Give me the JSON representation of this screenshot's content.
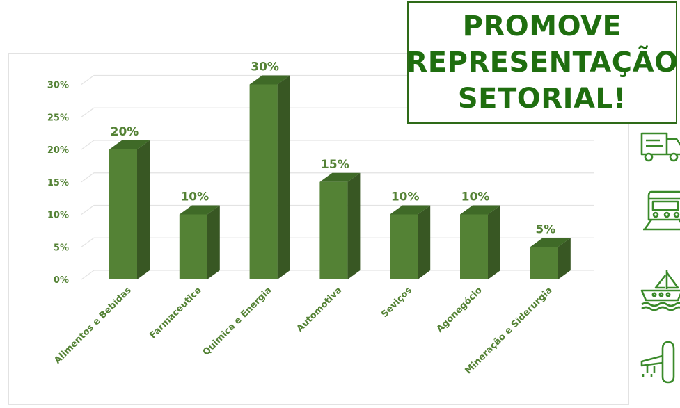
{
  "banner": {
    "line1": "PROMOVE",
    "line2": "REPRESENTAÇÃO",
    "line3": "SETORIAL!"
  },
  "colors": {
    "bar_front": "#548235",
    "bar_side": "#385723",
    "bar_top": "#3f6a27",
    "text_green": "#548235",
    "banner_text": "#1f6e0f",
    "icon_green": "#3a8a2a",
    "grid": "#e3e3e3"
  },
  "icons": [
    "truck-icon",
    "train-icon",
    "ship-icon",
    "airplane-icon"
  ],
  "chart_data": {
    "type": "bar",
    "style": "3d-column",
    "categories": [
      "Alimentos e Bebidas",
      "Farmaceutica",
      "Quimica e Energia",
      "Automotiva",
      "Seviços",
      "Agonegócio",
      "Mineração e Siderurgia"
    ],
    "values": [
      20,
      10,
      30,
      15,
      10,
      10,
      5
    ],
    "data_labels": [
      "20%",
      "10%",
      "30%",
      "15%",
      "10%",
      "10%",
      "5%"
    ],
    "y_ticks": [
      "0%",
      "5%",
      "10%",
      "15%",
      "20%",
      "25%",
      "30%"
    ],
    "ylim": [
      0,
      30
    ],
    "grid": true,
    "legend": false
  }
}
